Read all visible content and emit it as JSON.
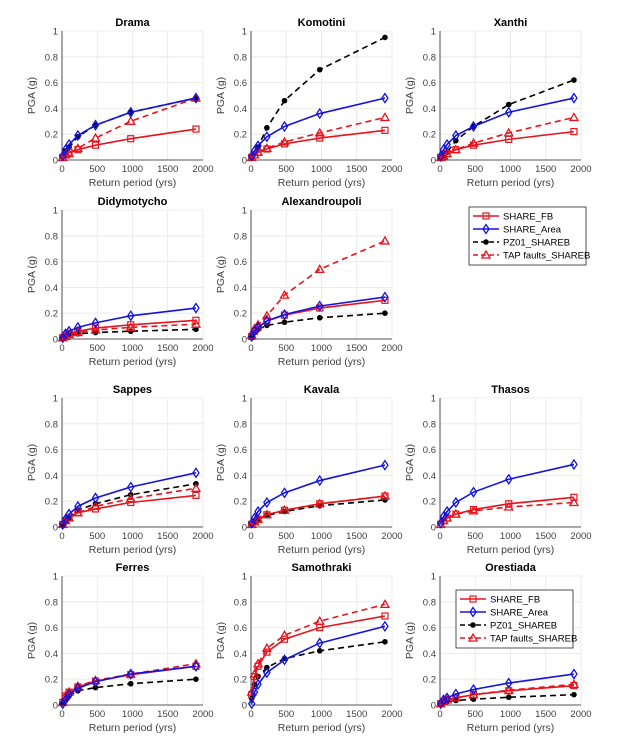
{
  "chart_data": {
    "type": "line",
    "figure_layout": "4x3 grid of subplots with two legends",
    "x": [
      10,
      50,
      100,
      225,
      475,
      975,
      1900
    ],
    "xlabel": "Return period (yrs)",
    "ylabel": "PGA (g)",
    "xlim": [
      0,
      2000
    ],
    "ylim": [
      0,
      1
    ],
    "xticks": [
      "0",
      "500",
      "1000",
      "1500",
      "2000"
    ],
    "yticks": [
      "0",
      "0.2",
      "0.4",
      "0.6",
      "0.8",
      "1"
    ],
    "grid": true,
    "legend": {
      "placement": "right of Alexandroupoli; inside Orestiada top",
      "entries": [
        {
          "key": "fb",
          "name": "SHARE_FB",
          "color": "#e8141c",
          "style": "solid",
          "marker": "square"
        },
        {
          "key": "area",
          "name": "SHARE_Area",
          "color": "#1414e0",
          "style": "solid",
          "marker": "diamond"
        },
        {
          "key": "pz",
          "name": "PZ01_SHAREB",
          "color": "#000000",
          "style": "dashed",
          "marker": "dot"
        },
        {
          "key": "tap",
          "name": "TAP faults_SHAREB",
          "color": "#e8141c",
          "style": "dashed",
          "marker": "triangle"
        }
      ]
    },
    "subplots": [
      {
        "title": "Drama",
        "series": {
          "fb": [
            0.02,
            0.04,
            0.06,
            0.08,
            0.115,
            0.165,
            0.24
          ],
          "area": [
            0.03,
            0.08,
            0.12,
            0.19,
            0.27,
            0.37,
            0.48
          ],
          "pz": [
            0.03,
            0.07,
            0.1,
            0.18,
            0.27,
            0.37,
            0.48
          ],
          "tap": [
            0.02,
            0.04,
            0.05,
            0.09,
            0.17,
            0.3,
            0.48
          ]
        }
      },
      {
        "title": "Komotini",
        "series": {
          "fb": [
            0.02,
            0.04,
            0.06,
            0.085,
            0.125,
            0.17,
            0.23
          ],
          "area": [
            0.03,
            0.07,
            0.11,
            0.18,
            0.26,
            0.36,
            0.48
          ],
          "pz": [
            0.02,
            0.05,
            0.1,
            0.25,
            0.46,
            0.7,
            0.95
          ],
          "tap": [
            0.02,
            0.04,
            0.06,
            0.09,
            0.14,
            0.21,
            0.33
          ]
        }
      },
      {
        "title": "Xanthi",
        "series": {
          "fb": [
            0.02,
            0.035,
            0.05,
            0.08,
            0.115,
            0.16,
            0.22
          ],
          "area": [
            0.03,
            0.08,
            0.12,
            0.19,
            0.26,
            0.37,
            0.48
          ],
          "pz": [
            0.01,
            0.03,
            0.06,
            0.15,
            0.26,
            0.43,
            0.62
          ],
          "tap": [
            0.02,
            0.03,
            0.05,
            0.08,
            0.13,
            0.21,
            0.33
          ]
        }
      },
      {
        "title": "Didymotycho",
        "series": {
          "fb": [
            0.01,
            0.03,
            0.045,
            0.06,
            0.085,
            0.11,
            0.145
          ],
          "area": [
            0.01,
            0.04,
            0.06,
            0.09,
            0.125,
            0.18,
            0.24
          ],
          "pz": [
            0.01,
            0.02,
            0.03,
            0.04,
            0.05,
            0.06,
            0.075
          ],
          "tap": [
            0.01,
            0.02,
            0.035,
            0.05,
            0.07,
            0.09,
            0.115
          ]
        }
      },
      {
        "title": "Alexandroupoli",
        "series": {
          "fb": [
            0.02,
            0.06,
            0.09,
            0.14,
            0.185,
            0.24,
            0.3
          ],
          "area": [
            0.02,
            0.06,
            0.09,
            0.14,
            0.19,
            0.255,
            0.325
          ],
          "pz": [
            0.02,
            0.05,
            0.075,
            0.105,
            0.13,
            0.165,
            0.2
          ],
          "tap": [
            0.03,
            0.08,
            0.11,
            0.18,
            0.34,
            0.54,
            0.76
          ]
        }
      },
      {
        "title": "Sappes",
        "series": {
          "fb": [
            0.02,
            0.05,
            0.07,
            0.11,
            0.14,
            0.19,
            0.245
          ],
          "area": [
            0.02,
            0.06,
            0.1,
            0.16,
            0.225,
            0.31,
            0.42
          ],
          "pz": [
            0.01,
            0.04,
            0.07,
            0.13,
            0.18,
            0.25,
            0.335
          ],
          "tap": [
            0.02,
            0.05,
            0.07,
            0.11,
            0.16,
            0.22,
            0.3
          ]
        }
      },
      {
        "title": "Kavala",
        "series": {
          "fb": [
            0.02,
            0.04,
            0.06,
            0.095,
            0.13,
            0.18,
            0.24
          ],
          "area": [
            0.03,
            0.07,
            0.12,
            0.19,
            0.265,
            0.36,
            0.48
          ],
          "pz": [
            0.02,
            0.04,
            0.06,
            0.09,
            0.12,
            0.165,
            0.21
          ],
          "tap": [
            0.02,
            0.04,
            0.06,
            0.095,
            0.13,
            0.18,
            0.24
          ]
        }
      },
      {
        "title": "Thasos",
        "series": {
          "fb": [
            0.02,
            0.05,
            0.07,
            0.1,
            0.135,
            0.18,
            0.23
          ],
          "area": [
            0.03,
            0.08,
            0.12,
            0.19,
            0.27,
            0.37,
            0.485
          ],
          "tap": [
            0.02,
            0.05,
            0.07,
            0.1,
            0.125,
            0.155,
            0.19
          ]
        }
      },
      {
        "title": "Ferres",
        "series": {
          "fb": [
            0.02,
            0.07,
            0.1,
            0.14,
            0.185,
            0.235,
            0.3
          ],
          "area": [
            0.01,
            0.04,
            0.08,
            0.13,
            0.18,
            0.24,
            0.3
          ],
          "pz": [
            0.01,
            0.04,
            0.07,
            0.11,
            0.135,
            0.165,
            0.2
          ],
          "tap": [
            0.02,
            0.07,
            0.1,
            0.145,
            0.19,
            0.24,
            0.32
          ]
        }
      },
      {
        "title": "Samothraki",
        "series": {
          "fb": [
            0.08,
            0.22,
            0.3,
            0.41,
            0.51,
            0.6,
            0.69
          ],
          "area": [
            0.01,
            0.1,
            0.16,
            0.25,
            0.35,
            0.48,
            0.61
          ],
          "pz": [
            0.05,
            0.16,
            0.22,
            0.29,
            0.36,
            0.42,
            0.49
          ],
          "tap": [
            0.1,
            0.24,
            0.32,
            0.44,
            0.54,
            0.65,
            0.78
          ]
        }
      },
      {
        "title": "Orestiada",
        "series": {
          "fb": [
            0.01,
            0.025,
            0.04,
            0.055,
            0.08,
            0.11,
            0.15
          ],
          "area": [
            0.01,
            0.04,
            0.055,
            0.085,
            0.12,
            0.17,
            0.24
          ],
          "pz": [
            0.005,
            0.015,
            0.025,
            0.035,
            0.045,
            0.06,
            0.08
          ],
          "tap": [
            0.01,
            0.025,
            0.04,
            0.055,
            0.08,
            0.115,
            0.16
          ]
        }
      }
    ]
  }
}
